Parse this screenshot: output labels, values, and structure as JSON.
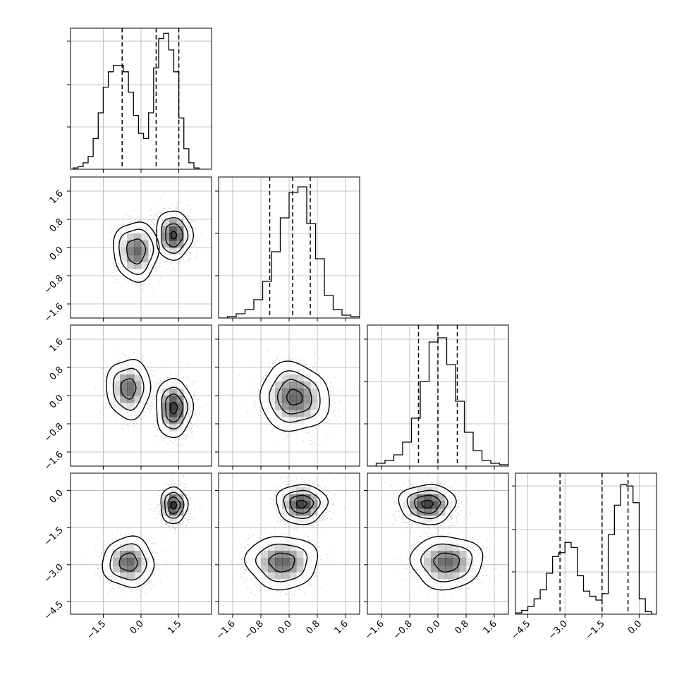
{
  "chart_data": {
    "type": "corner",
    "dimensions": 4,
    "params": [
      {
        "range": [
          -2.8,
          2.8
        ],
        "ticks": [
          -1.5,
          0.0,
          1.5
        ],
        "tick_labels": [
          "−1.5",
          "0.0",
          "1.5"
        ],
        "quantiles": [
          -0.75,
          0.6,
          1.5
        ]
      },
      {
        "range": [
          -2.0,
          2.0
        ],
        "ticks": [
          -1.6,
          -0.8,
          0.0,
          0.8,
          1.6
        ],
        "tick_labels": [
          "−1.6",
          "−0.8",
          "0.0",
          "0.8",
          "1.6"
        ],
        "quantiles": [
          -0.55,
          0.1,
          0.6
        ]
      },
      {
        "range": [
          -2.0,
          2.0
        ],
        "ticks": [
          -1.6,
          -0.8,
          0.0,
          0.8,
          1.6
        ],
        "tick_labels": [
          "−1.6",
          "−0.8",
          "0.0",
          "0.8",
          "1.6"
        ],
        "quantiles": [
          -0.55,
          0.0,
          0.55
        ]
      },
      {
        "range": [
          -5.0,
          0.7
        ],
        "ticks": [
          -4.5,
          -3.0,
          -1.5,
          0.0
        ],
        "tick_labels": [
          "−4.5",
          "−3.0",
          "−1.5",
          "0.0"
        ],
        "quantiles": [
          -3.2,
          -1.5,
          -0.45
        ]
      }
    ],
    "histograms": [
      {
        "param": 0,
        "bin_centers": [
          -2.6,
          -2.4,
          -2.2,
          -2.0,
          -1.8,
          -1.6,
          -1.4,
          -1.2,
          -1.0,
          -0.8,
          -0.6,
          -0.4,
          -0.2,
          0.0,
          0.2,
          0.4,
          0.6,
          0.8,
          1.0,
          1.2,
          1.4,
          1.6,
          1.8,
          2.0,
          2.2,
          2.4,
          2.6
        ],
        "counts": [
          0.01,
          0.02,
          0.05,
          0.1,
          0.24,
          0.44,
          0.64,
          0.76,
          0.81,
          0.81,
          0.76,
          0.6,
          0.42,
          0.28,
          0.24,
          0.44,
          0.79,
          1.02,
          1.06,
          0.93,
          0.76,
          0.4,
          0.16,
          0.05,
          0.01,
          0.0,
          0.0
        ],
        "ylim": [
          0,
          1.1
        ],
        "grid_levels": [
          0.33,
          0.66,
          1.0
        ]
      },
      {
        "param": 1,
        "bin_centers": [
          -1.875,
          -1.625,
          -1.375,
          -1.125,
          -0.875,
          -0.625,
          -0.375,
          -0.125,
          0.125,
          0.375,
          0.625,
          0.875,
          1.125,
          1.375,
          1.625,
          1.875
        ],
        "counts": [
          0.0,
          0.01,
          0.03,
          0.06,
          0.13,
          0.26,
          0.47,
          0.71,
          0.89,
          0.93,
          0.67,
          0.42,
          0.16,
          0.06,
          0.02,
          0.01
        ],
        "ylim": [
          0,
          1.0
        ],
        "grid_levels": [
          0.3,
          0.6,
          0.9
        ]
      },
      {
        "param": 2,
        "bin_centers": [
          -1.875,
          -1.625,
          -1.375,
          -1.125,
          -0.875,
          -0.625,
          -0.375,
          -0.125,
          0.125,
          0.375,
          0.625,
          0.875,
          1.125,
          1.375,
          1.625,
          1.875
        ],
        "counts": [
          0.0,
          0.02,
          0.04,
          0.08,
          0.17,
          0.34,
          0.6,
          0.88,
          0.91,
          0.72,
          0.46,
          0.24,
          0.11,
          0.04,
          0.02,
          0.01
        ],
        "ylim": [
          0,
          1.0
        ],
        "grid_levels": [
          0.3,
          0.6,
          0.9
        ]
      },
      {
        "param": 3,
        "bin_centers": [
          -4.875,
          -4.625,
          -4.375,
          -4.125,
          -3.875,
          -3.625,
          -3.375,
          -3.125,
          -2.875,
          -2.625,
          -2.375,
          -2.125,
          -1.875,
          -1.625,
          -1.375,
          -1.125,
          -0.875,
          -0.625,
          -0.375,
          -0.125,
          0.125,
          0.375,
          0.625
        ],
        "counts": [
          0.01,
          0.03,
          0.06,
          0.12,
          0.19,
          0.32,
          0.45,
          0.48,
          0.56,
          0.52,
          0.3,
          0.18,
          0.14,
          0.11,
          0.16,
          0.62,
          0.85,
          1.01,
          1.0,
          0.87,
          0.12,
          0.02,
          0.0
        ],
        "ylim": [
          0,
          1.1
        ],
        "grid_levels": [
          0.33,
          0.66,
          1.0
        ]
      }
    ],
    "pairs": [
      {
        "x_param": 0,
        "y_param": 1,
        "modes": [
          {
            "center": [
              -0.2,
              -0.1
            ],
            "spread": [
              0.8,
              0.75
            ],
            "weight": 1.0,
            "contours": [
              0.08,
              0.24,
              0.65
            ]
          },
          {
            "center": [
              1.3,
              0.35
            ],
            "spread": [
              0.68,
              0.65
            ],
            "weight": 1.2,
            "contours": [
              0.1,
              0.3,
              0.6,
              0.95
            ]
          }
        ]
      },
      {
        "x_param": 0,
        "y_param": 2,
        "modes": [
          {
            "center": [
              -0.5,
              0.2
            ],
            "spread": [
              0.78,
              0.75
            ],
            "weight": 1.0,
            "contours": [
              0.08,
              0.3,
              0.75
            ]
          },
          {
            "center": [
              1.3,
              -0.35
            ],
            "spread": [
              0.68,
              0.78
            ],
            "weight": 1.25,
            "contours": [
              0.1,
              0.32,
              0.6,
              0.92
            ]
          }
        ]
      },
      {
        "x_param": 1,
        "y_param": 2,
        "modes": [
          {
            "center": [
              0.15,
              -0.05
            ],
            "spread": [
              0.98,
              0.92
            ],
            "angle_deg": -40,
            "weight": 1.0,
            "contours": [
              0.12,
              0.32,
              0.6,
              0.9
            ]
          }
        ]
      },
      {
        "x_param": 0,
        "y_param": 3,
        "modes": [
          {
            "center": [
              -0.5,
              -2.9
            ],
            "spread": [
              0.95,
              0.95
            ],
            "angle_deg": 35,
            "weight": 1.0,
            "contours": [
              0.1,
              0.32,
              0.75
            ]
          },
          {
            "center": [
              1.3,
              -0.6
            ],
            "spread": [
              0.52,
              0.72
            ],
            "weight": 1.3,
            "contours": [
              0.12,
              0.35,
              0.65,
              0.92
            ]
          }
        ]
      },
      {
        "x_param": 1,
        "y_param": 3,
        "modes": [
          {
            "center": [
              0.35,
              -0.55
            ],
            "spread": [
              0.7,
              0.78
            ],
            "weight": 1.2,
            "contours": [
              0.12,
              0.35,
              0.65,
              0.92
            ]
          },
          {
            "center": [
              -0.2,
              -2.9
            ],
            "spread": [
              0.95,
              1.0
            ],
            "weight": 1.0,
            "contours": [
              0.1,
              0.32,
              0.75
            ]
          }
        ]
      },
      {
        "x_param": 2,
        "y_param": 3,
        "modes": [
          {
            "center": [
              -0.3,
              -0.55
            ],
            "spread": [
              0.78,
              0.78
            ],
            "weight": 1.2,
            "contours": [
              0.12,
              0.35,
              0.65,
              0.92
            ]
          },
          {
            "center": [
              0.25,
              -2.9
            ],
            "spread": [
              0.95,
              1.0
            ],
            "weight": 1.0,
            "contours": [
              0.1,
              0.32,
              0.75
            ]
          }
        ]
      }
    ],
    "grid": true,
    "colors": {
      "line": "#000000",
      "grid": "#b0b0b0",
      "scatter": "#9a9a9a",
      "density": "#000000"
    }
  }
}
